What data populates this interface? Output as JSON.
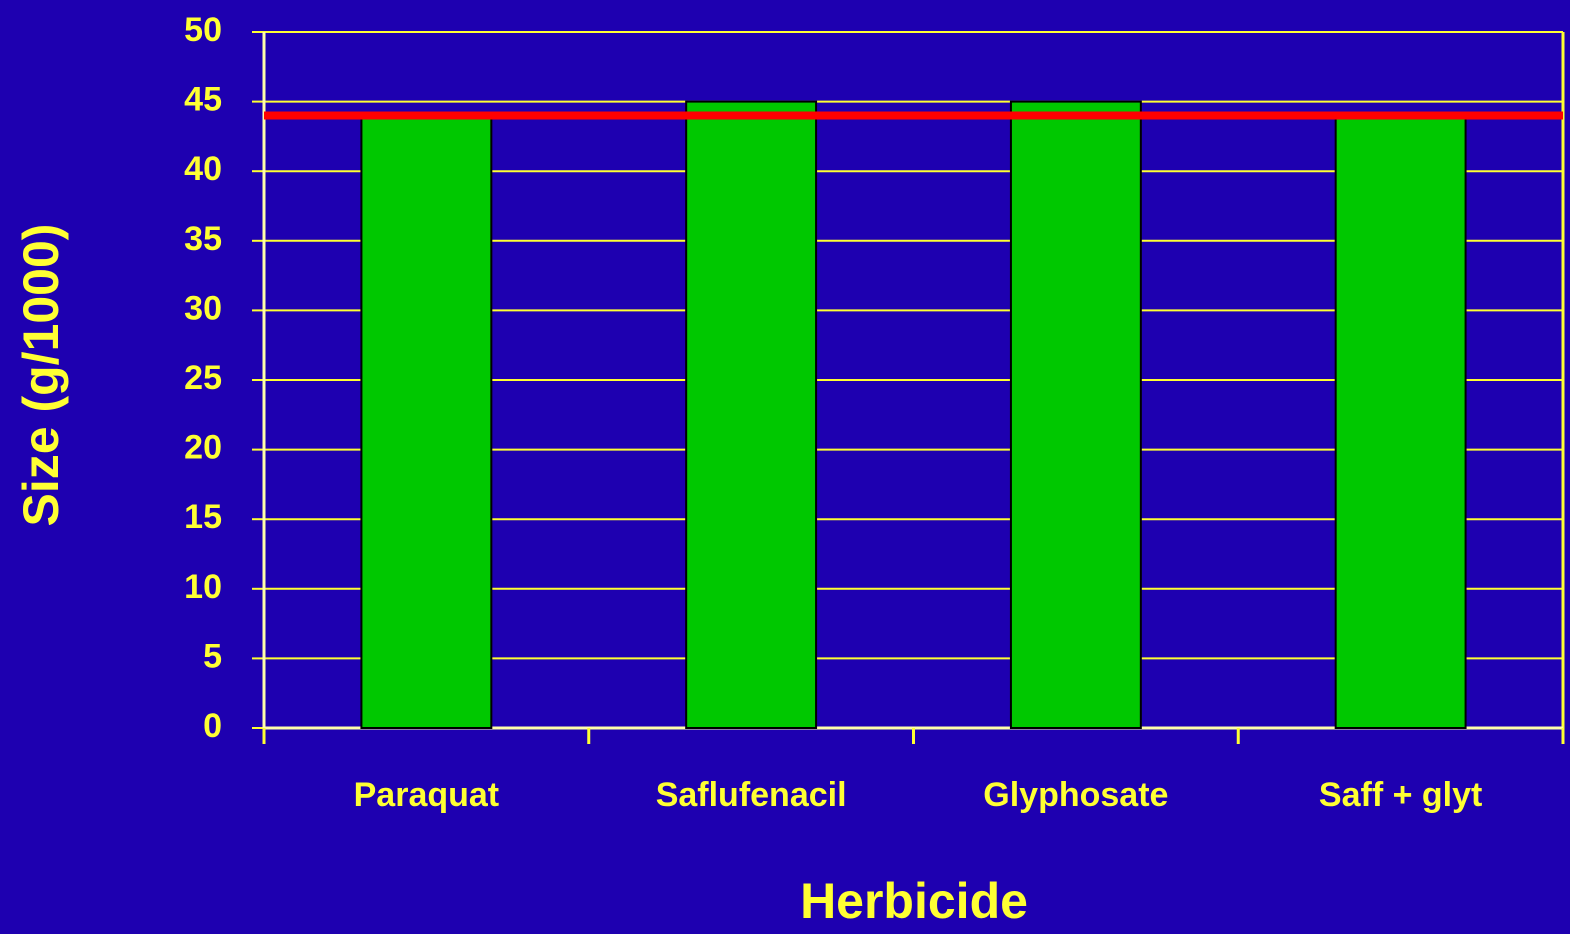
{
  "chart_data": {
    "type": "bar",
    "x_label": "Herbicide",
    "y_label": "Size (g/1000)",
    "categories": [
      "Paraquat",
      "Saflufenacil",
      "Glyphosate",
      "Saff + glyt"
    ],
    "values": [
      44,
      45,
      45,
      44
    ],
    "color": "#00c800",
    "reference_line": {
      "value": 44,
      "color": "#ff0000"
    },
    "ylim": [
      0,
      50
    ],
    "yticks": [
      0,
      5,
      10,
      15,
      20,
      25,
      30,
      35,
      40,
      45,
      50
    ],
    "grid": true
  }
}
